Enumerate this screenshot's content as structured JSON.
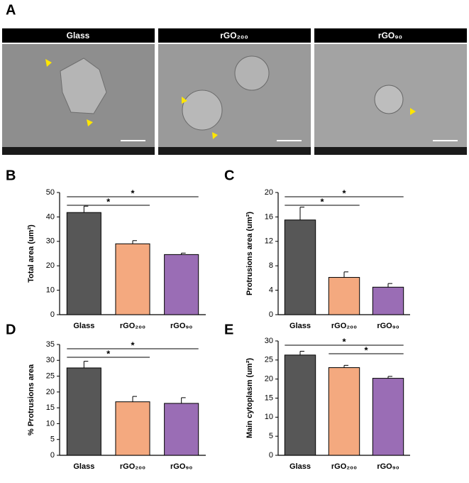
{
  "panel_a": {
    "label": "A",
    "images": [
      "Glass",
      "rGO₂₀₀",
      "rGO₉₀"
    ]
  },
  "chart_data": [
    {
      "type": "bar",
      "panel": "B",
      "ylabel": "Total area (um²)",
      "categories": [
        "Glass",
        "rGO₂₀₀",
        "rGO₉₀"
      ],
      "values": [
        41.8,
        29.0,
        24.6
      ],
      "errors": [
        2.6,
        1.3,
        0.6
      ],
      "colors": [
        "#575757",
        "#f4a97f",
        "#9a6db5"
      ],
      "ylim": [
        0,
        50
      ],
      "yticks": [
        0,
        10,
        20,
        30,
        40,
        50
      ],
      "significance": [
        {
          "from": 0,
          "to": 1,
          "label": "*"
        },
        {
          "from": 0,
          "to": 2,
          "label": "*"
        }
      ]
    },
    {
      "type": "bar",
      "panel": "C",
      "ylabel": "Protrusions area (um²)",
      "categories": [
        "Glass",
        "rGO₂₀₀",
        "rGO₉₀"
      ],
      "values": [
        15.5,
        6.1,
        4.5
      ],
      "errors": [
        2.1,
        0.9,
        0.6
      ],
      "colors": [
        "#575757",
        "#f4a97f",
        "#9a6db5"
      ],
      "ylim": [
        0,
        20
      ],
      "yticks": [
        0,
        4,
        8,
        12,
        16,
        20
      ],
      "significance": [
        {
          "from": 0,
          "to": 1,
          "label": "*"
        },
        {
          "from": 0,
          "to": 2,
          "label": "*"
        }
      ]
    },
    {
      "type": "bar",
      "panel": "D",
      "ylabel": "% Protrusions area",
      "categories": [
        "Glass",
        "rGO₂₀₀",
        "rGO₉₀"
      ],
      "values": [
        27.6,
        16.9,
        16.4
      ],
      "errors": [
        2.1,
        1.7,
        1.8
      ],
      "colors": [
        "#575757",
        "#f4a97f",
        "#9a6db5"
      ],
      "ylim": [
        0,
        35
      ],
      "yticks": [
        0,
        5,
        10,
        15,
        20,
        25,
        30,
        35
      ],
      "significance": [
        {
          "from": 0,
          "to": 1,
          "label": "*"
        },
        {
          "from": 0,
          "to": 2,
          "label": "*"
        }
      ]
    },
    {
      "type": "bar",
      "panel": "E",
      "ylabel": "Main cytoplasm (um²)",
      "categories": [
        "Glass",
        "rGO₂₀₀",
        "rGO₉₀"
      ],
      "values": [
        26.3,
        23.0,
        20.2
      ],
      "errors": [
        1.0,
        0.6,
        0.5
      ],
      "colors": [
        "#575757",
        "#f4a97f",
        "#9a6db5"
      ],
      "ylim": [
        0,
        30
      ],
      "yticks": [
        0,
        5,
        10,
        15,
        20,
        25,
        30
      ],
      "significance": [
        {
          "from": 1,
          "to": 2,
          "label": "*"
        },
        {
          "from": 0,
          "to": 2,
          "label": "*"
        }
      ]
    }
  ]
}
